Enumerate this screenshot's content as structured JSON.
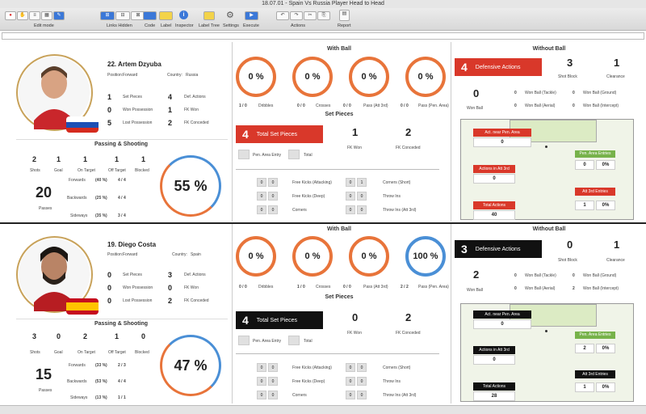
{
  "window": {
    "title": "18.07.01 - Spain Vs Russia Player Head to Head"
  },
  "toolbar": {
    "edit_mode": "Edit mode",
    "links_hidden": "Links Hidden",
    "code": "Code",
    "label": "Label",
    "inspector": "Inspector",
    "label_tree": "Label Tree",
    "settings": "Settings",
    "execute": "Execute",
    "actions": "Actions",
    "report": "Report"
  },
  "headers": {
    "with_ball": "With Ball",
    "set_pieces": "Set Pieces",
    "without_ball": "Without Ball",
    "passing_shooting": "Passing & Shooting"
  },
  "labels": {
    "position": "Position:",
    "country": "Country:",
    "set_pieces": "Set Pieces",
    "won_possession": "Won Possession",
    "lost_possession": "Lost Possession",
    "def_actions": "Def. Actions",
    "fk_won": "FK Won",
    "fk_conceded": "FK Conceded",
    "shots": "Shots",
    "goal": "Goal",
    "on_target": "On Target",
    "off_target": "Off Target",
    "blocked": "Blocked",
    "passes": "Passes",
    "forwards": "Forwards",
    "backwards": "Backwards",
    "sideways": "Sideways",
    "dribbles": "Dribbles",
    "crosses": "Crosses",
    "pass_att3": "Pass (Att 3rd)",
    "pass_pen": "Pass (Pen. Area)",
    "total_set_pieces": "Total Set Pieces",
    "fk_won_lbl": "FK Won",
    "fk_conceded_lbl": "FK Conceded",
    "pen_area_entry": "Pen. Area Entry",
    "total": "Total",
    "fk_attacking": "Free Kicks (Attacking)",
    "fk_deep": "Free Kicks (Deep)",
    "corners": "Corners",
    "corners_short": "Corners (Short)",
    "throw_ins": "Throw Ins",
    "throw_ins_att3": "Throw Ins (Att 3rd)",
    "defensive_actions": "Defensive Actions",
    "shot_block": "Shot Block",
    "clearance": "Clearance",
    "won_ball": "Won Ball",
    "won_ball_tackle": "Won Ball (Tackle)",
    "won_ball_ground": "Won Ball (Ground)",
    "won_ball_aerial": "Won Ball (Aerial)",
    "won_ball_intercept": "Won Ball (Intercept)",
    "act_near_pen": "Act. near Pen. Area",
    "actions_att3": "Actions in Att 3rd",
    "total_actions": "Total Actions",
    "pen_area_entries": "Pen. Area Entries",
    "att3_entries": "Att 3rd Entries",
    "zero_pct": "0%"
  },
  "players": [
    {
      "name": "22. Artem Dzyuba",
      "position": "Forward",
      "country": "Russia",
      "set_pieces": "1",
      "won_possession": "0",
      "lost_possession": "5",
      "def_actions": "4",
      "fk_won": "1",
      "fk_conceded": "2",
      "shots": "2",
      "goal": "1",
      "on_target": "1",
      "off_target": "1",
      "blocked": "1",
      "passes": "20",
      "fwd_pct": "(40 %)",
      "fwd_val": "4 / 4",
      "bwd_pct": "(25 %)",
      "bwd_val": "4 / 4",
      "side_pct": "(35 %)",
      "side_val": "3 / 4",
      "pass_pct": "55 %",
      "circles": [
        "0 %",
        "0 %",
        "0 %",
        "0 %"
      ],
      "circle_vals": [
        "1 / 0",
        "0 / 0",
        "0 / 0",
        "0 / 0"
      ],
      "total_sp": "4",
      "sp_fk_won": "1",
      "sp_fk_conceded": "2",
      "sp_rows": [
        [
          "0",
          "0"
        ],
        [
          "0",
          "0"
        ],
        [
          "0",
          "0"
        ]
      ],
      "sp_rows_r": [
        [
          "0",
          "1"
        ],
        [
          "0",
          "0"
        ],
        [
          "0",
          "0"
        ]
      ],
      "def_total": "4",
      "shot_block": "3",
      "clearance": "1",
      "won_ball": "0",
      "wb_tackle": "0",
      "wb_ground": "0",
      "wb_aerial": "0",
      "wb_intercept": "0",
      "act_near_pen": "0",
      "actions_att3": "0",
      "total_actions": "40",
      "pen_entries": [
        "0",
        "0%"
      ],
      "att3_entries": [
        "1",
        "0%"
      ]
    },
    {
      "name": "19. Diego Costa",
      "position": "Forward",
      "country": "Spain",
      "set_pieces": "0",
      "won_possession": "0",
      "lost_possession": "0",
      "def_actions": "3",
      "fk_won": "0",
      "fk_conceded": "2",
      "shots": "3",
      "goal": "0",
      "on_target": "2",
      "off_target": "1",
      "blocked": "0",
      "passes": "15",
      "fwd_pct": "(33 %)",
      "fwd_val": "2 / 3",
      "bwd_pct": "(53 %)",
      "bwd_val": "4 / 4",
      "side_pct": "(13 %)",
      "side_val": "1 / 1",
      "pass_pct": "47 %",
      "circles": [
        "0 %",
        "0 %",
        "0 %",
        "100 %"
      ],
      "circle_vals": [
        "0 / 0",
        "1 / 0",
        "0 / 0",
        "2 / 2"
      ],
      "total_sp": "4",
      "sp_fk_won": "0",
      "sp_fk_conceded": "2",
      "sp_rows": [
        [
          "0",
          "0"
        ],
        [
          "0",
          "0"
        ],
        [
          "0",
          "0"
        ]
      ],
      "sp_rows_r": [
        [
          "0",
          "0"
        ],
        [
          "0",
          "0"
        ],
        [
          "0",
          "0"
        ]
      ],
      "def_total": "3",
      "shot_block": "0",
      "clearance": "1",
      "won_ball": "2",
      "wb_tackle": "0",
      "wb_ground": "0",
      "wb_aerial": "0",
      "wb_intercept": "2",
      "act_near_pen": "0",
      "actions_att3": "0",
      "total_actions": "28",
      "pen_entries": [
        "2",
        "0%"
      ],
      "att3_entries": [
        "1",
        "0%"
      ]
    }
  ],
  "colors": {
    "russia_accent": "#d9382a",
    "spain_accent": "#111111",
    "orange_ring": "#e8743a",
    "blue_ring": "#4a8fd6",
    "pitch_green": "#77b24a"
  }
}
